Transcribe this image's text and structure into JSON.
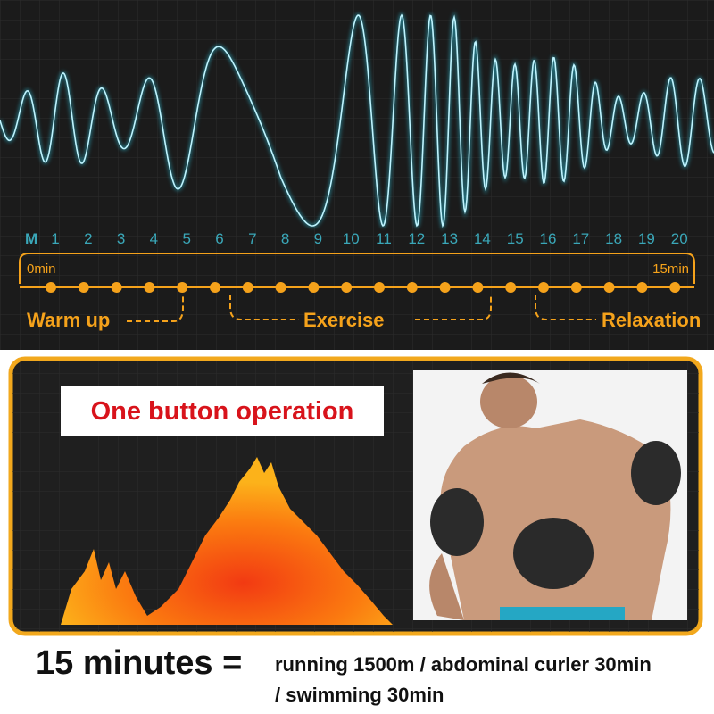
{
  "scale": {
    "mode_label": "M",
    "numbers": [
      1,
      2,
      3,
      4,
      5,
      6,
      7,
      8,
      9,
      10,
      11,
      12,
      13,
      14,
      15,
      16,
      17,
      18,
      19,
      20
    ],
    "start": "0min",
    "end": "15min"
  },
  "phases": [
    "Warm up",
    "Exercise",
    "Relaxation"
  ],
  "panel": {
    "title": "One button operation"
  },
  "footer": {
    "lead": "15 minutes =",
    "line1": "running 1500m / abdominal curler 30min",
    "line2": "/ swimming 30min"
  }
}
